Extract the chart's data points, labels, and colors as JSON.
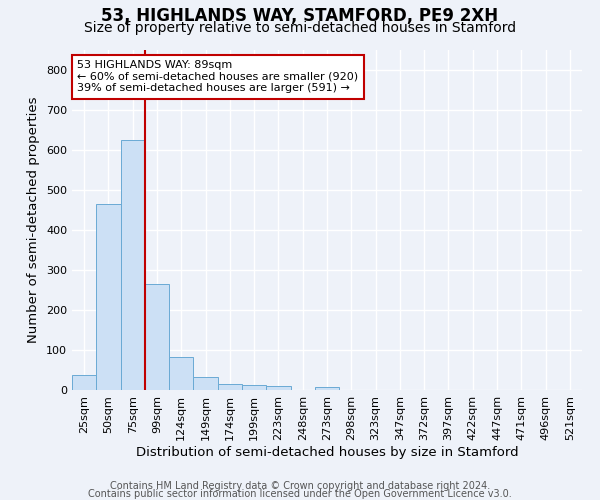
{
  "title": "53, HIGHLANDS WAY, STAMFORD, PE9 2XH",
  "subtitle": "Size of property relative to semi-detached houses in Stamford",
  "xlabel": "Distribution of semi-detached houses by size in Stamford",
  "ylabel": "Number of semi-detached properties",
  "footnote1": "Contains HM Land Registry data © Crown copyright and database right 2024.",
  "footnote2": "Contains public sector information licensed under the Open Government Licence v3.0.",
  "bar_labels": [
    "25sqm",
    "50sqm",
    "75sqm",
    "99sqm",
    "124sqm",
    "149sqm",
    "174sqm",
    "199sqm",
    "223sqm",
    "248sqm",
    "273sqm",
    "298sqm",
    "323sqm",
    "347sqm",
    "372sqm",
    "397sqm",
    "422sqm",
    "447sqm",
    "471sqm",
    "496sqm",
    "521sqm"
  ],
  "bar_values": [
    37,
    465,
    625,
    265,
    82,
    33,
    15,
    13,
    11,
    0,
    8,
    0,
    0,
    0,
    0,
    0,
    0,
    0,
    0,
    0,
    0
  ],
  "bar_color": "#cce0f5",
  "bar_edgecolor": "#6aaad4",
  "property_line_color": "#c00000",
  "annotation_text": "53 HIGHLANDS WAY: 89sqm\n← 60% of semi-detached houses are smaller (920)\n39% of semi-detached houses are larger (591) →",
  "annotation_box_edgecolor": "#c00000",
  "annotation_box_facecolor": "#ffffff",
  "ylim": [
    0,
    850
  ],
  "yticks": [
    0,
    100,
    200,
    300,
    400,
    500,
    600,
    700,
    800
  ],
  "background_color": "#eef2f9",
  "plot_background_color": "#eef2f9",
  "grid_color": "#ffffff",
  "title_fontsize": 12,
  "subtitle_fontsize": 10,
  "axis_label_fontsize": 9.5,
  "tick_fontsize": 8,
  "footnote_fontsize": 7,
  "annotation_fontsize": 8
}
